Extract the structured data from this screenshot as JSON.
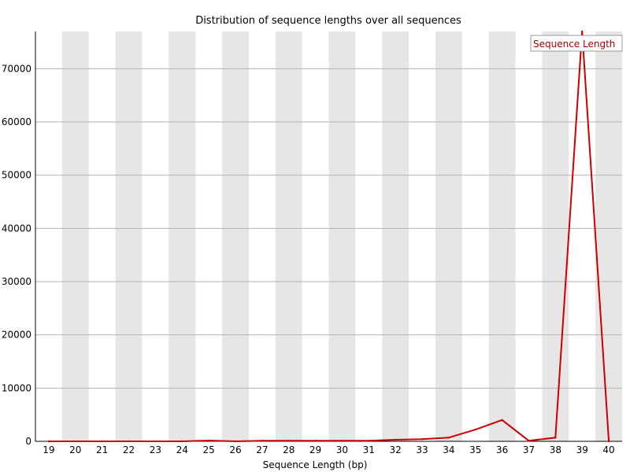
{
  "chart_data": {
    "type": "line",
    "title": "Distribution of sequence lengths over all sequences",
    "xlabel": "Sequence Length (bp)",
    "ylabel": "",
    "categories": [
      "19",
      "20",
      "21",
      "22",
      "23",
      "24",
      "25",
      "26",
      "27",
      "28",
      "29",
      "30",
      "31",
      "32",
      "33",
      "34",
      "35",
      "36",
      "37",
      "38",
      "39",
      "40"
    ],
    "series": [
      {
        "name": "Sequence Length",
        "values": [
          0,
          0,
          0,
          0,
          0,
          0,
          150,
          0,
          100,
          100,
          100,
          100,
          100,
          300,
          400,
          700,
          2200,
          4000,
          100,
          700,
          77000,
          0
        ]
      }
    ],
    "ylim": [
      0,
      77000
    ],
    "yticks": [
      0,
      10000,
      20000,
      30000,
      40000,
      50000,
      60000,
      70000
    ],
    "grid": true,
    "alternating_bands": true,
    "legend_position": "top-right",
    "colors": {
      "line": "#cc0000",
      "band": "#e6e6e6",
      "grid": "#b3b3b3",
      "axis": "#000000",
      "legend_text": "#aa0000",
      "legend_border": "#999999"
    }
  }
}
